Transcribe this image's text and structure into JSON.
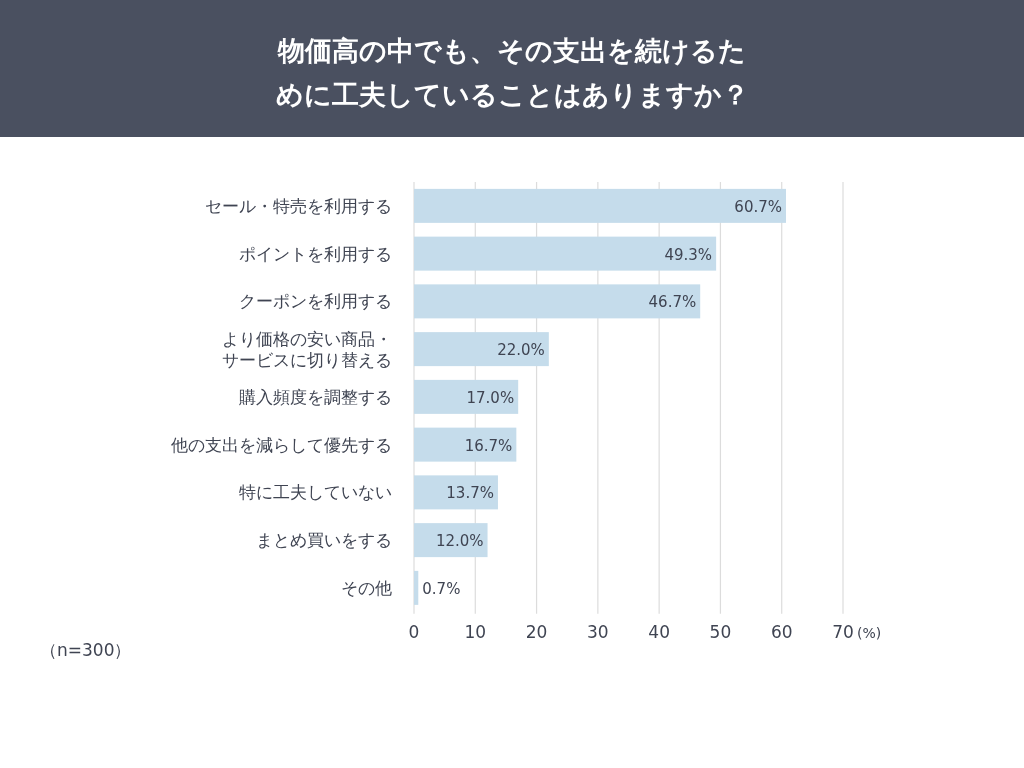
{
  "chart_data": {
    "type": "bar",
    "orientation": "horizontal",
    "title": "物価高の中でも、その支出を続けるために工夫していることはありますか？",
    "xlabel": "(%)",
    "categories": [
      "セール・特売を利用する",
      "ポイントを利用する",
      "クーポンを利用する",
      "より価格の安い商品・サービスに切り替える",
      "購入頻度を調整する",
      "他の支出を減らして優先する",
      "特に工夫していない",
      "まとめ買いをする",
      "その他"
    ],
    "values": [
      60.7,
      49.3,
      46.7,
      22.0,
      17.0,
      16.7,
      13.7,
      12.0,
      0.7
    ],
    "color": "#c5dceb",
    "xlim": [
      0,
      70
    ],
    "xticks": [
      0,
      10,
      20,
      30,
      40,
      50,
      60,
      70
    ],
    "grid": "x",
    "value_labels": [
      "60.7%",
      "49.3%",
      "46.7%",
      "22.0%",
      "17.0%",
      "16.7%",
      "13.7%",
      "12.0%",
      "0.7%"
    ],
    "annotations": [
      "（n=300）"
    ]
  }
}
